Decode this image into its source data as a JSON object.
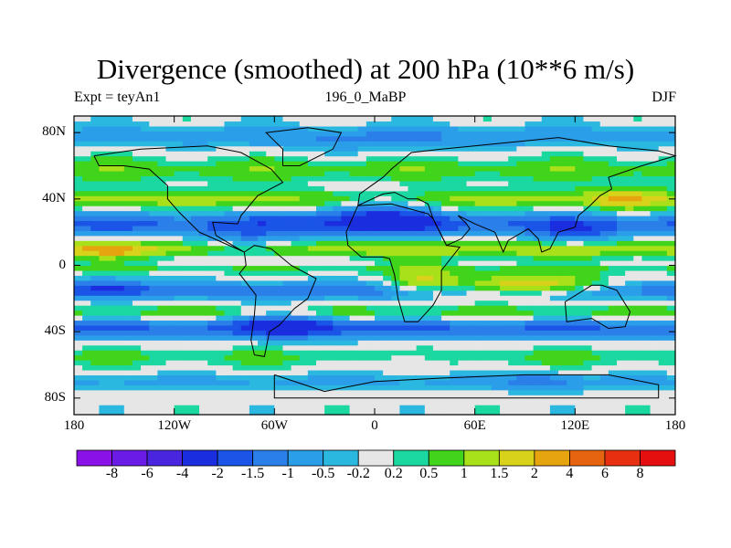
{
  "chart_data": {
    "type": "heatmap",
    "title": "Divergence (smoothed) at 200 hPa (10**6 m/s)",
    "left_subtitle": "Expt = teyAn1",
    "center_subtitle": "196_0_MaBP",
    "right_subtitle": "DJF",
    "x_axis": {
      "range": [
        -180,
        180
      ],
      "ticks": [
        -180,
        -120,
        -60,
        0,
        60,
        120,
        180
      ],
      "tick_labels": [
        "180",
        "120W",
        "60W",
        "0",
        "60E",
        "120E",
        "180"
      ]
    },
    "y_axis": {
      "range": [
        -90,
        90
      ],
      "ticks": [
        80,
        40,
        0,
        -40,
        -80
      ],
      "tick_labels": [
        "80N",
        "40N",
        "0",
        "40S",
        "80S"
      ]
    },
    "colorbar": {
      "labels": [
        "-8",
        "-6",
        "-4",
        "-2",
        "-1.5",
        "-1",
        "-0.5",
        "-0.2",
        "0.2",
        "0.5",
        "1",
        "1.5",
        "2",
        "4",
        "6",
        "8"
      ],
      "colors": [
        "#8a12e8",
        "#6a1be6",
        "#4a25e0",
        "#1a2ee0",
        "#1a55e8",
        "#2a7fe8",
        "#2a9ee8",
        "#2ab8e0",
        "#e6e6e6",
        "#1ad8a0",
        "#40d41a",
        "#a8e01a",
        "#d8d21a",
        "#e6a40f",
        "#e6640f",
        "#e6300f",
        "#e60f0f"
      ]
    },
    "bands": [
      {
        "lat": 78,
        "level": -0.8,
        "width": 6
      },
      {
        "lat": 58,
        "level": 0.8,
        "width": 7
      },
      {
        "lat": 40,
        "level": 1.2,
        "width": 6
      },
      {
        "lat": 25,
        "level": -1.6,
        "width": 7
      },
      {
        "lat": 10,
        "level": 1.4,
        "width": 5
      },
      {
        "lat": -2,
        "level": 0.6,
        "width": 3
      },
      {
        "lat": -15,
        "level": -1.3,
        "width": 5
      },
      {
        "lat": -28,
        "level": 0.7,
        "width": 4
      },
      {
        "lat": -38,
        "level": -1.5,
        "width": 6
      },
      {
        "lat": -55,
        "level": 0.5,
        "width": 6
      },
      {
        "lat": -70,
        "level": -0.6,
        "width": 5
      }
    ],
    "blobs": [
      {
        "lon": 90,
        "lat": -12,
        "rlon": 45,
        "rlat": 6,
        "level": 2.6
      },
      {
        "lon": -160,
        "lat": 9,
        "rlon": 25,
        "rlat": 5,
        "level": 0.9
      },
      {
        "lon": 0,
        "lat": 32,
        "rlon": 35,
        "rlat": 12,
        "level": -1.6
      },
      {
        "lon": -75,
        "lat": 12,
        "rlon": 30,
        "rlat": 10,
        "level": -1.1
      },
      {
        "lon": -50,
        "lat": -35,
        "rlon": 30,
        "rlat": 8,
        "level": -1.4
      },
      {
        "lon": 120,
        "lat": 18,
        "rlon": 25,
        "rlat": 7,
        "level": -0.9
      },
      {
        "lon": 150,
        "lat": 40,
        "rlon": 20,
        "rlat": 7,
        "level": 1.0
      },
      {
        "lon": 30,
        "lat": -10,
        "rlon": 20,
        "rlat": 8,
        "level": 1.4
      },
      {
        "lon": -160,
        "lat": -12,
        "rlon": 25,
        "rlat": 6,
        "level": -1.0
      },
      {
        "lon": 0,
        "lat": 75,
        "rlon": 60,
        "rlat": 8,
        "level": -0.4
      },
      {
        "lon": 20,
        "lat": -58,
        "rlon": 20,
        "rlat": 6,
        "level": -0.7
      },
      {
        "lon": 100,
        "lat": -70,
        "rlon": 20,
        "rlat": 6,
        "level": -0.9
      }
    ]
  }
}
